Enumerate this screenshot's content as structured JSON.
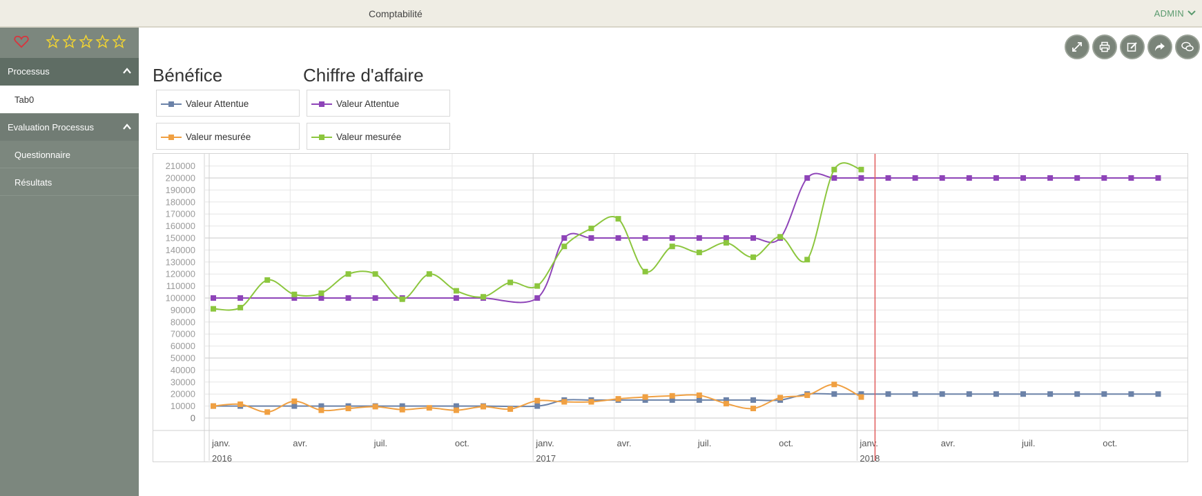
{
  "topbar": {
    "title": "Comptabilité",
    "user": "ADMIN"
  },
  "sidebar": {
    "sections": [
      {
        "label": "Processus",
        "items": [
          "Tab0"
        ]
      },
      {
        "label": "Evaluation Processus",
        "items": [
          "Questionnaire",
          "Résultats"
        ]
      }
    ]
  },
  "toolbar": {
    "icons": [
      "expand-icon",
      "print-icon",
      "edit-icon",
      "share-icon",
      "comment-icon"
    ]
  },
  "charts": [
    {
      "title": "Bénéfice",
      "legend": [
        "Valeur Attentue",
        "Valeur mesurée"
      ]
    },
    {
      "title": "Chiffre d'affaire",
      "legend": [
        "Valeur Attentue",
        "Valeur mesurée"
      ]
    }
  ],
  "colors": {
    "benefice_attendue": "#6b82a8",
    "benefice_mesuree": "#f0a042",
    "ca_attendue": "#8e44b8",
    "ca_mesuree": "#8cc63e",
    "sidebar": "#7c877e",
    "today_marker": "#e15b5b"
  },
  "chart_data": {
    "type": "line",
    "ylim": [
      0,
      210000
    ],
    "y_ticks": [
      0,
      10000,
      20000,
      30000,
      40000,
      50000,
      60000,
      70000,
      80000,
      90000,
      100000,
      110000,
      120000,
      130000,
      140000,
      150000,
      160000,
      170000,
      180000,
      190000,
      200000,
      210000
    ],
    "x_ticks": [
      {
        "month": "2016-01",
        "label": "janv.",
        "year": "2016"
      },
      {
        "month": "2016-04",
        "label": "avr."
      },
      {
        "month": "2016-07",
        "label": "juil."
      },
      {
        "month": "2016-10",
        "label": "oct."
      },
      {
        "month": "2017-01",
        "label": "janv.",
        "year": "2017"
      },
      {
        "month": "2017-04",
        "label": "avr."
      },
      {
        "month": "2017-07",
        "label": "juil."
      },
      {
        "month": "2017-10",
        "label": "oct."
      },
      {
        "month": "2018-01",
        "label": "janv.",
        "year": "2018"
      },
      {
        "month": "2018-04",
        "label": "avr."
      },
      {
        "month": "2018-07",
        "label": "juil."
      },
      {
        "month": "2018-10",
        "label": "oct."
      }
    ],
    "today_marker": "2018-01",
    "series": [
      {
        "name": "Valeur Attentue",
        "chart": "Bénéfice",
        "color": "#6b82a8",
        "points": [
          [
            "2016-01",
            10000
          ],
          [
            "2016-02",
            10000
          ],
          [
            "2016-04",
            10000
          ],
          [
            "2016-05",
            10000
          ],
          [
            "2016-06",
            10000
          ],
          [
            "2016-07",
            10000
          ],
          [
            "2016-08",
            10000
          ],
          [
            "2016-10",
            10000
          ],
          [
            "2016-11",
            10000
          ],
          [
            "2017-01",
            10000
          ],
          [
            "2017-02",
            15000
          ],
          [
            "2017-03",
            15000
          ],
          [
            "2017-04",
            15000
          ],
          [
            "2017-05",
            15000
          ],
          [
            "2017-06",
            15000
          ],
          [
            "2017-07",
            15000
          ],
          [
            "2017-08",
            15000
          ],
          [
            "2017-09",
            15000
          ],
          [
            "2017-10",
            15000
          ],
          [
            "2017-11",
            20000
          ],
          [
            "2017-12",
            20000
          ],
          [
            "2018-01",
            20000
          ],
          [
            "2018-02",
            20000
          ],
          [
            "2018-03",
            20000
          ],
          [
            "2018-04",
            20000
          ],
          [
            "2018-05",
            20000
          ],
          [
            "2018-06",
            20000
          ],
          [
            "2018-07",
            20000
          ],
          [
            "2018-08",
            20000
          ],
          [
            "2018-09",
            20000
          ],
          [
            "2018-10",
            20000
          ],
          [
            "2018-11",
            20000
          ],
          [
            "2018-12",
            20000
          ]
        ]
      },
      {
        "name": "Valeur mesurée",
        "chart": "Bénéfice",
        "color": "#f0a042",
        "points": [
          [
            "2016-01",
            10000
          ],
          [
            "2016-02",
            11500
          ],
          [
            "2016-03",
            5000
          ],
          [
            "2016-04",
            14000
          ],
          [
            "2016-05",
            6500
          ],
          [
            "2016-06",
            8000
          ],
          [
            "2016-07",
            9500
          ],
          [
            "2016-08",
            7000
          ],
          [
            "2016-09",
            8500
          ],
          [
            "2016-10",
            6500
          ],
          [
            "2016-11",
            9500
          ],
          [
            "2016-12",
            7500
          ],
          [
            "2017-01",
            14500
          ],
          [
            "2017-02",
            13500
          ],
          [
            "2017-03",
            13500
          ],
          [
            "2017-04",
            16000
          ],
          [
            "2017-05",
            17500
          ],
          [
            "2017-06",
            18500
          ],
          [
            "2017-07",
            19000
          ],
          [
            "2017-08",
            12000
          ],
          [
            "2017-09",
            8000
          ],
          [
            "2017-10",
            17000
          ],
          [
            "2017-11",
            19000
          ],
          [
            "2017-12",
            28000
          ],
          [
            "2018-01",
            17500
          ]
        ]
      },
      {
        "name": "Valeur Attentue",
        "chart": "Chiffre d'affaire",
        "color": "#8e44b8",
        "points": [
          [
            "2016-01",
            100000
          ],
          [
            "2016-02",
            100000
          ],
          [
            "2016-04",
            100000
          ],
          [
            "2016-05",
            100000
          ],
          [
            "2016-06",
            100000
          ],
          [
            "2016-07",
            100000
          ],
          [
            "2016-08",
            100000
          ],
          [
            "2016-10",
            100000
          ],
          [
            "2016-11",
            100000
          ],
          [
            "2017-01",
            100000
          ],
          [
            "2017-02",
            150000
          ],
          [
            "2017-03",
            150000
          ],
          [
            "2017-04",
            150000
          ],
          [
            "2017-05",
            150000
          ],
          [
            "2017-06",
            150000
          ],
          [
            "2017-07",
            150000
          ],
          [
            "2017-08",
            150000
          ],
          [
            "2017-09",
            150000
          ],
          [
            "2017-10",
            150000
          ],
          [
            "2017-11",
            200000
          ],
          [
            "2017-12",
            200000
          ],
          [
            "2018-01",
            200000
          ],
          [
            "2018-02",
            200000
          ],
          [
            "2018-03",
            200000
          ],
          [
            "2018-04",
            200000
          ],
          [
            "2018-05",
            200000
          ],
          [
            "2018-06",
            200000
          ],
          [
            "2018-07",
            200000
          ],
          [
            "2018-08",
            200000
          ],
          [
            "2018-09",
            200000
          ],
          [
            "2018-10",
            200000
          ],
          [
            "2018-11",
            200000
          ],
          [
            "2018-12",
            200000
          ]
        ]
      },
      {
        "name": "Valeur mesurée",
        "chart": "Chiffre d'affaire",
        "color": "#8cc63e",
        "points": [
          [
            "2016-01",
            91000
          ],
          [
            "2016-02",
            92000
          ],
          [
            "2016-03",
            115000
          ],
          [
            "2016-04",
            103000
          ],
          [
            "2016-05",
            104000
          ],
          [
            "2016-06",
            120000
          ],
          [
            "2016-07",
            120000
          ],
          [
            "2016-08",
            99000
          ],
          [
            "2016-09",
            120000
          ],
          [
            "2016-10",
            106000
          ],
          [
            "2016-11",
            101000
          ],
          [
            "2016-12",
            113000
          ],
          [
            "2017-01",
            110000
          ],
          [
            "2017-02",
            143000
          ],
          [
            "2017-03",
            158000
          ],
          [
            "2017-04",
            166000
          ],
          [
            "2017-05",
            122000
          ],
          [
            "2017-06",
            143000
          ],
          [
            "2017-07",
            138000
          ],
          [
            "2017-08",
            146000
          ],
          [
            "2017-09",
            134000
          ],
          [
            "2017-10",
            151000
          ],
          [
            "2017-11",
            132000
          ],
          [
            "2017-12",
            207000
          ],
          [
            "2018-01",
            207000
          ]
        ]
      }
    ]
  }
}
